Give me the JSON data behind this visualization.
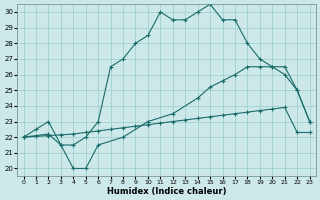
{
  "xlabel": "Humidex (Indice chaleur)",
  "xlim": [
    -0.5,
    23.5
  ],
  "ylim": [
    19.5,
    30.5
  ],
  "yticks": [
    20,
    21,
    22,
    23,
    24,
    25,
    26,
    27,
    28,
    29,
    30
  ],
  "xticks": [
    0,
    1,
    2,
    3,
    4,
    5,
    6,
    7,
    8,
    9,
    10,
    11,
    12,
    13,
    14,
    15,
    16,
    17,
    18,
    19,
    20,
    21,
    22,
    23
  ],
  "background_color": "#cce8e8",
  "grid_color": "#99cccc",
  "line_color": "#1a6b6b",
  "line1_x": [
    0,
    1,
    2,
    3,
    4,
    5,
    6,
    7,
    8,
    9,
    10,
    11,
    12,
    13,
    14,
    15,
    16,
    17,
    18,
    19,
    20,
    21,
    22,
    23
  ],
  "line1_y": [
    22.0,
    22.5,
    23.0,
    21.5,
    21.5,
    22.0,
    23.0,
    26.5,
    27.0,
    28.0,
    28.5,
    30.0,
    29.5,
    29.5,
    30.0,
    30.5,
    29.5,
    29.5,
    28.0,
    27.0,
    26.5,
    26.0,
    25.0,
    23.0
  ],
  "line2_x": [
    0,
    2,
    3,
    4,
    5,
    6,
    8,
    10,
    12,
    14,
    15,
    16,
    17,
    18,
    19,
    20,
    21,
    22,
    23
  ],
  "line2_y": [
    22.0,
    22.2,
    21.5,
    20.0,
    20.0,
    21.5,
    22.0,
    23.0,
    23.5,
    24.5,
    25.2,
    25.6,
    26.0,
    26.5,
    26.5,
    26.5,
    26.5,
    25.0,
    23.0
  ],
  "line3_x": [
    0,
    1,
    2,
    3,
    4,
    5,
    6,
    7,
    8,
    9,
    10,
    11,
    12,
    13,
    14,
    15,
    16,
    17,
    18,
    19,
    20,
    21,
    22,
    23
  ],
  "line3_y": [
    22.0,
    22.05,
    22.1,
    22.15,
    22.2,
    22.3,
    22.4,
    22.5,
    22.6,
    22.7,
    22.8,
    22.9,
    23.0,
    23.1,
    23.2,
    23.3,
    23.4,
    23.5,
    23.6,
    23.7,
    23.8,
    23.9,
    22.3,
    22.3
  ]
}
